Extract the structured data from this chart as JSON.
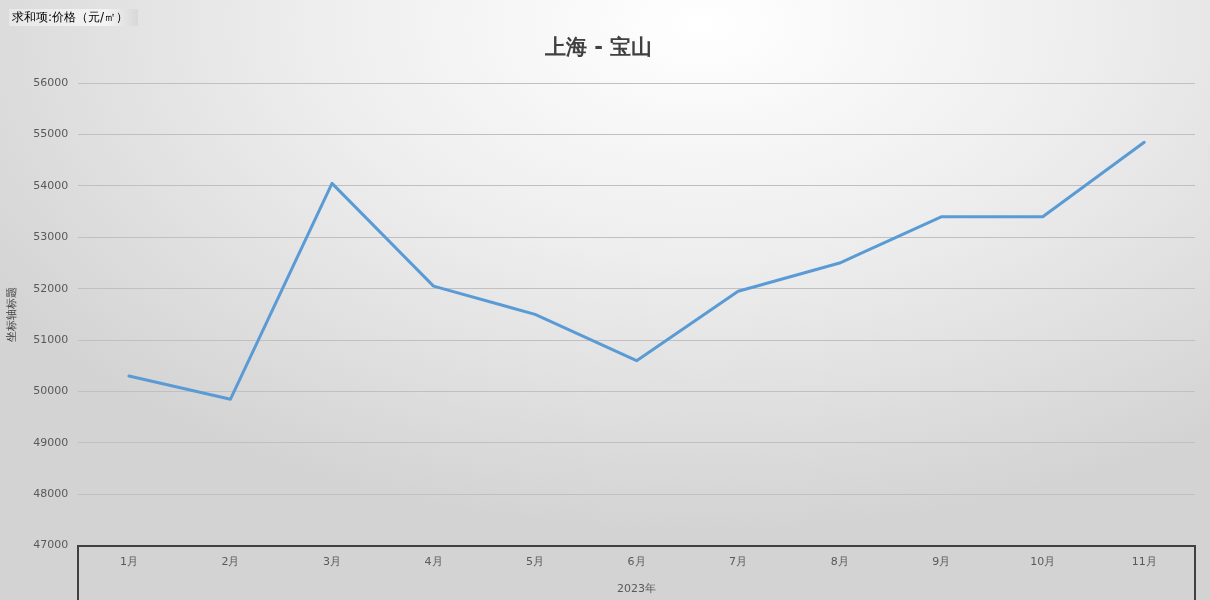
{
  "chart_data": {
    "type": "line",
    "title": "上海 - 宝山",
    "annotations": [
      "求和项:价格（元/㎡）"
    ],
    "ylabel": "坐标轴标题",
    "xlabel": "2023年",
    "categories": [
      "1月",
      "2月",
      "3月",
      "4月",
      "5月",
      "6月",
      "7月",
      "8月",
      "9月",
      "10月",
      "11月"
    ],
    "values": [
      50300,
      49850,
      54050,
      52050,
      51500,
      50600,
      51950,
      52500,
      53400,
      53400,
      54850
    ],
    "color": "#5b9bd5",
    "ylim": [
      47000,
      56000
    ],
    "yticks": [
      47000,
      48000,
      49000,
      50000,
      51000,
      52000,
      53000,
      54000,
      55000,
      56000
    ],
    "grid": "y",
    "marker": "none",
    "line_style": "solid"
  }
}
